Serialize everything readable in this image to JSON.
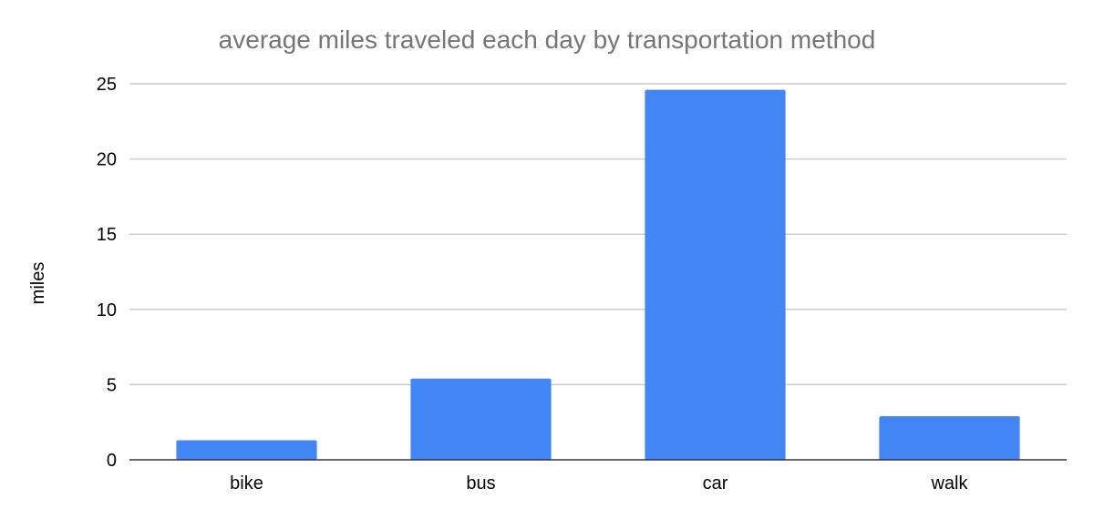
{
  "chart_data": {
    "type": "bar",
    "title": "average miles traveled each day by transportation method",
    "xlabel": "",
    "ylabel": "miles",
    "categories": [
      "bike",
      "bus",
      "car",
      "walk"
    ],
    "values": [
      1.3,
      5.4,
      24.6,
      2.9
    ],
    "ylim": [
      0,
      25
    ],
    "yticks": [
      "0",
      "5",
      "10",
      "15",
      "20",
      "25"
    ],
    "grid": true,
    "legend": "none",
    "bar_color": "#4285f4"
  }
}
